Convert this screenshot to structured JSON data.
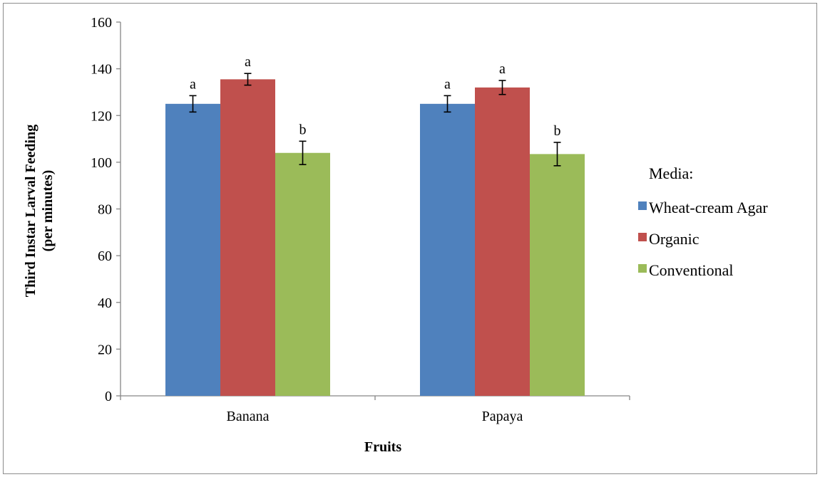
{
  "chart_data": {
    "type": "bar",
    "categories": [
      "Banana",
      "Papaya"
    ],
    "series": [
      {
        "name": "Wheat-cream Agar",
        "color": "#4F81BD",
        "values": [
          125,
          125
        ],
        "errors": [
          3.5,
          3.5
        ],
        "letters": [
          "a",
          "a"
        ]
      },
      {
        "name": "Organic",
        "color": "#C0504D",
        "values": [
          135.5,
          132
        ],
        "errors": [
          2.5,
          3
        ],
        "letters": [
          "a",
          "a"
        ]
      },
      {
        "name": "Conventional",
        "color": "#9BBB59",
        "values": [
          104,
          103.5
        ],
        "errors": [
          5,
          5
        ],
        "letters": [
          "b",
          "b"
        ]
      }
    ],
    "xlabel": "Fruits",
    "ylabel_lines": [
      "Third Instar Larval Feeding",
      "(per minutes)"
    ],
    "ylim": [
      0,
      160
    ],
    "yticks": [
      0,
      20,
      40,
      60,
      80,
      100,
      120,
      140,
      160
    ],
    "legend_title": "Media:",
    "legend_position": "right",
    "grid": false
  }
}
